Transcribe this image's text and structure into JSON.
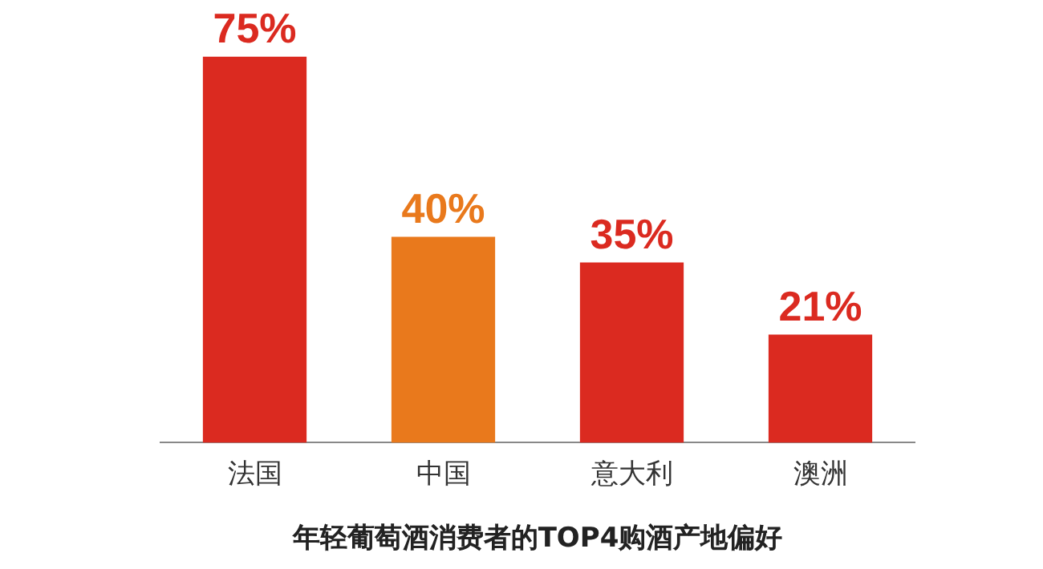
{
  "chart_data": {
    "type": "bar",
    "title": "年轻葡萄酒消费者的TOP4购酒产地偏好",
    "categories": [
      "法国",
      "中国",
      "意大利",
      "澳洲"
    ],
    "values": [
      75,
      40,
      35,
      21
    ],
    "colors": [
      "#db2a20",
      "#e9791c",
      "#db2a20",
      "#db2a20"
    ],
    "value_labels": [
      "75%",
      "40%",
      "35%",
      "21%"
    ]
  }
}
